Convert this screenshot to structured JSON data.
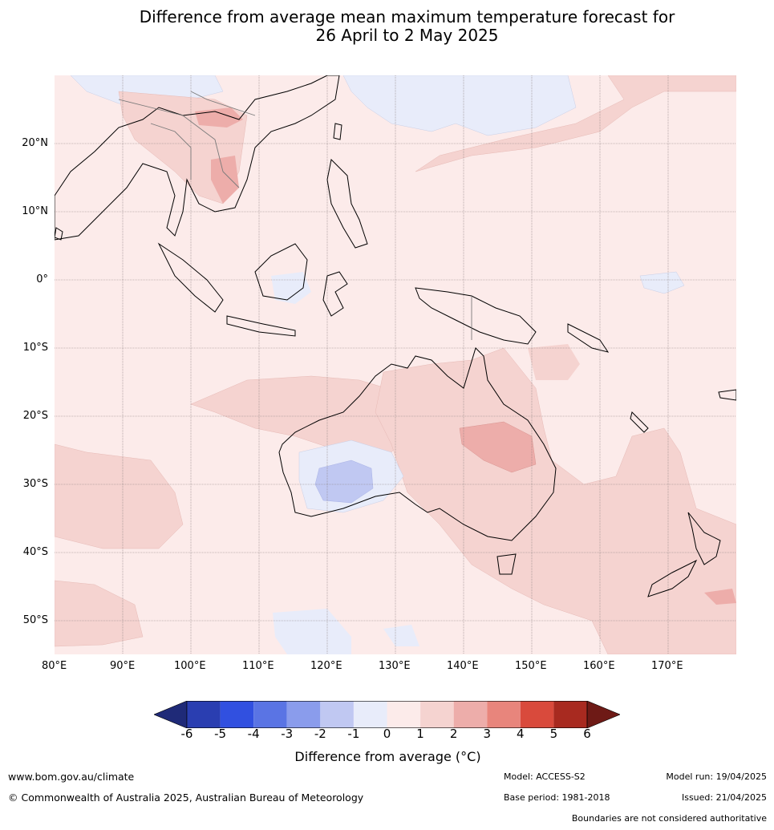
{
  "title_line1": "Difference from average mean maximum temperature forecast for",
  "title_line2": "26 April to 2 May 2025",
  "map": {
    "lat_labels": [
      "20°N",
      "10°N",
      "0°",
      "10°S",
      "20°S",
      "30°S",
      "40°S",
      "50°S"
    ],
    "lon_labels": [
      "80°E",
      "90°E",
      "100°E",
      "110°E",
      "120°E",
      "130°E",
      "140°E",
      "150°E",
      "160°E",
      "170°E"
    ],
    "extent": {
      "lon_min": 80,
      "lon_max": 180,
      "lat_min": -55,
      "lat_max": 30
    },
    "colors": {
      "ocean_base": "#fcebea",
      "warm_1_2": "#f5d3d0",
      "warm_2_3": "#edadaa",
      "cool_0_m1": "#e8ecfa",
      "cool_m2_m3": "#c0c8f2"
    }
  },
  "colorbar": {
    "ticks": [
      "-6",
      "-5",
      "-4",
      "-3",
      "-2",
      "-1",
      "0",
      "1",
      "2",
      "3",
      "4",
      "5",
      "6"
    ],
    "colors": [
      "#1f2a78",
      "#2a3eb1",
      "#3150e0",
      "#5a74e4",
      "#8a9cec",
      "#c0c8f2",
      "#e8ecfa",
      "#fcebea",
      "#f5d3d0",
      "#edadaa",
      "#e8857c",
      "#d94a3c",
      "#a82a20",
      "#6e1a16"
    ],
    "label": "Difference from average (°C)"
  },
  "footer": {
    "website": "www.bom.gov.au/climate",
    "copyright": "© Commonwealth of Australia 2025, Australian Bureau of Meteorology",
    "model": "Model: ACCESS-S2",
    "base_period": "Base period: 1981-2018",
    "model_run": "Model run: 19/04/2025",
    "issued": "Issued: 21/04/2025",
    "disclaimer": "Boundaries are not considered authoritative"
  }
}
